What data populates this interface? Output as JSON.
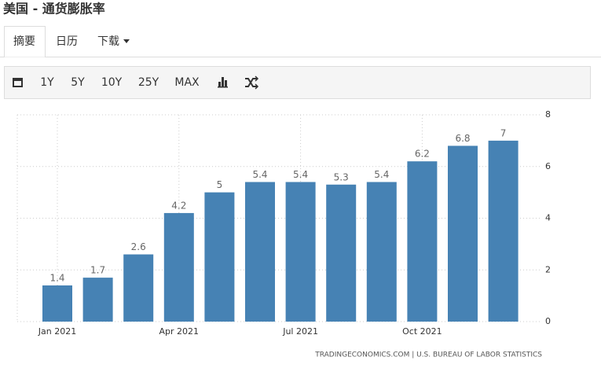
{
  "header": {
    "title": "美国 - 通货膨胀率"
  },
  "tabs": [
    "摘要",
    "日历",
    "下载"
  ],
  "toolbar": [
    "1Y",
    "5Y",
    "10Y",
    "25Y",
    "MAX"
  ],
  "chart_data": {
    "type": "bar",
    "categories": [
      "Jan 2021",
      null,
      null,
      "Apr 2021",
      null,
      null,
      "Jul 2021",
      null,
      null,
      "Oct 2021",
      null,
      null
    ],
    "values": [
      1.4,
      1.7,
      2.6,
      4.2,
      5,
      5.4,
      5.4,
      5.3,
      5.4,
      6.2,
      6.8,
      7
    ],
    "color": "#4682b4",
    "ylim": [
      0,
      8
    ],
    "yticks": [
      0,
      2,
      4,
      6,
      8
    ],
    "grid": true,
    "source": "TRADINGECONOMICS.COM | U.S. BUREAU OF LABOR STATISTICS"
  }
}
